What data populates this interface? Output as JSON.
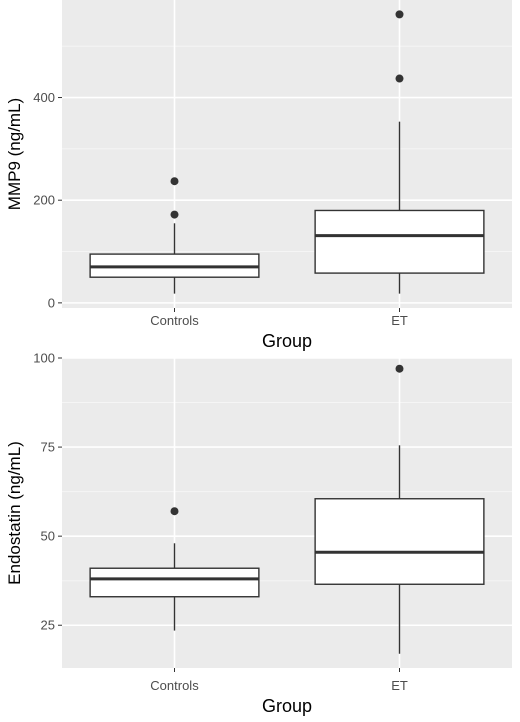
{
  "chart_data": [
    {
      "type": "boxplot",
      "xlabel": "Group",
      "ylabel": "MMP9 (ng/mL)",
      "ylim": [
        -10,
        590
      ],
      "yticks": [
        0,
        200,
        400
      ],
      "grid": true,
      "categories": [
        "Controls",
        "ET"
      ],
      "boxes": [
        {
          "category": "Controls",
          "whisker_low": 18,
          "q1": 50,
          "median": 70,
          "q3": 95,
          "whisker_high": 155,
          "outliers": [
            172,
            237
          ]
        },
        {
          "category": "ET",
          "whisker_low": 18,
          "q1": 58,
          "median": 131,
          "q3": 180,
          "whisker_high": 353,
          "outliers": [
            437,
            562
          ]
        }
      ]
    },
    {
      "type": "boxplot",
      "xlabel": "Group",
      "ylabel": "Endostatin (ng/mL)",
      "ylim": [
        13,
        100
      ],
      "yticks": [
        25,
        50,
        75,
        100
      ],
      "grid": true,
      "categories": [
        "Controls",
        "ET"
      ],
      "boxes": [
        {
          "category": "Controls",
          "whisker_low": 23.5,
          "q1": 33,
          "median": 38,
          "q3": 41,
          "whisker_high": 48,
          "outliers": [
            57
          ]
        },
        {
          "category": "ET",
          "whisker_low": 17,
          "q1": 36.5,
          "median": 45.5,
          "q3": 60.5,
          "whisker_high": 75.5,
          "outliers": [
            97
          ]
        }
      ]
    }
  ]
}
